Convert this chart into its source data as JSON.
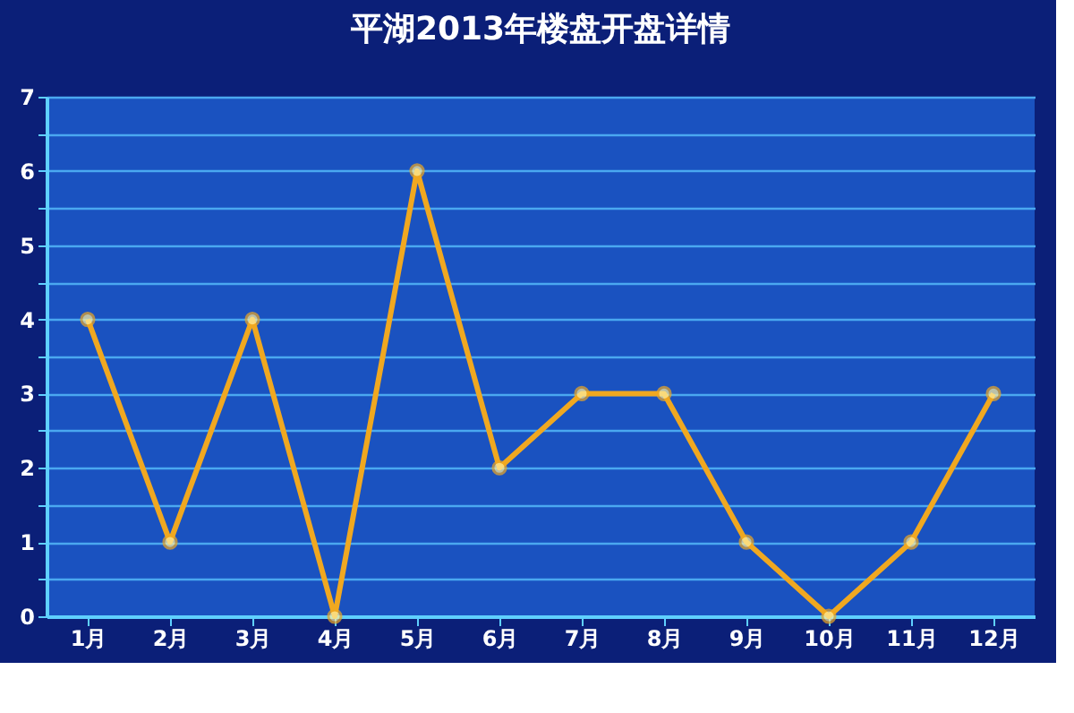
{
  "chart_data": {
    "type": "line",
    "title": "平湖2013年楼盘开盘详情",
    "categories": [
      "1月",
      "2月",
      "3月",
      "4月",
      "5月",
      "6月",
      "7月",
      "8月",
      "9月",
      "10月",
      "11月",
      "12月"
    ],
    "series": [
      {
        "color": "#f0a820",
        "values": [
          4,
          1,
          4,
          0,
          6,
          2,
          3,
          3,
          1,
          0,
          1,
          3
        ]
      }
    ],
    "ylim": [
      0,
      7
    ],
    "yticks": [
      0,
      {
        "value": 0.5,
        "label": null
      },
      1,
      {
        "value": 1.5,
        "label": null
      },
      2,
      {
        "value": 2.5,
        "label": null
      },
      3,
      {
        "value": 3.5,
        "label": null
      },
      4,
      {
        "value": 4.5,
        "label": null
      },
      5,
      {
        "value": 5.5,
        "label": null
      },
      6,
      {
        "value": 6.5,
        "label": null
      },
      7
    ],
    "grid": "y",
    "marker": "circle",
    "line_style": "solid",
    "legend": false
  }
}
